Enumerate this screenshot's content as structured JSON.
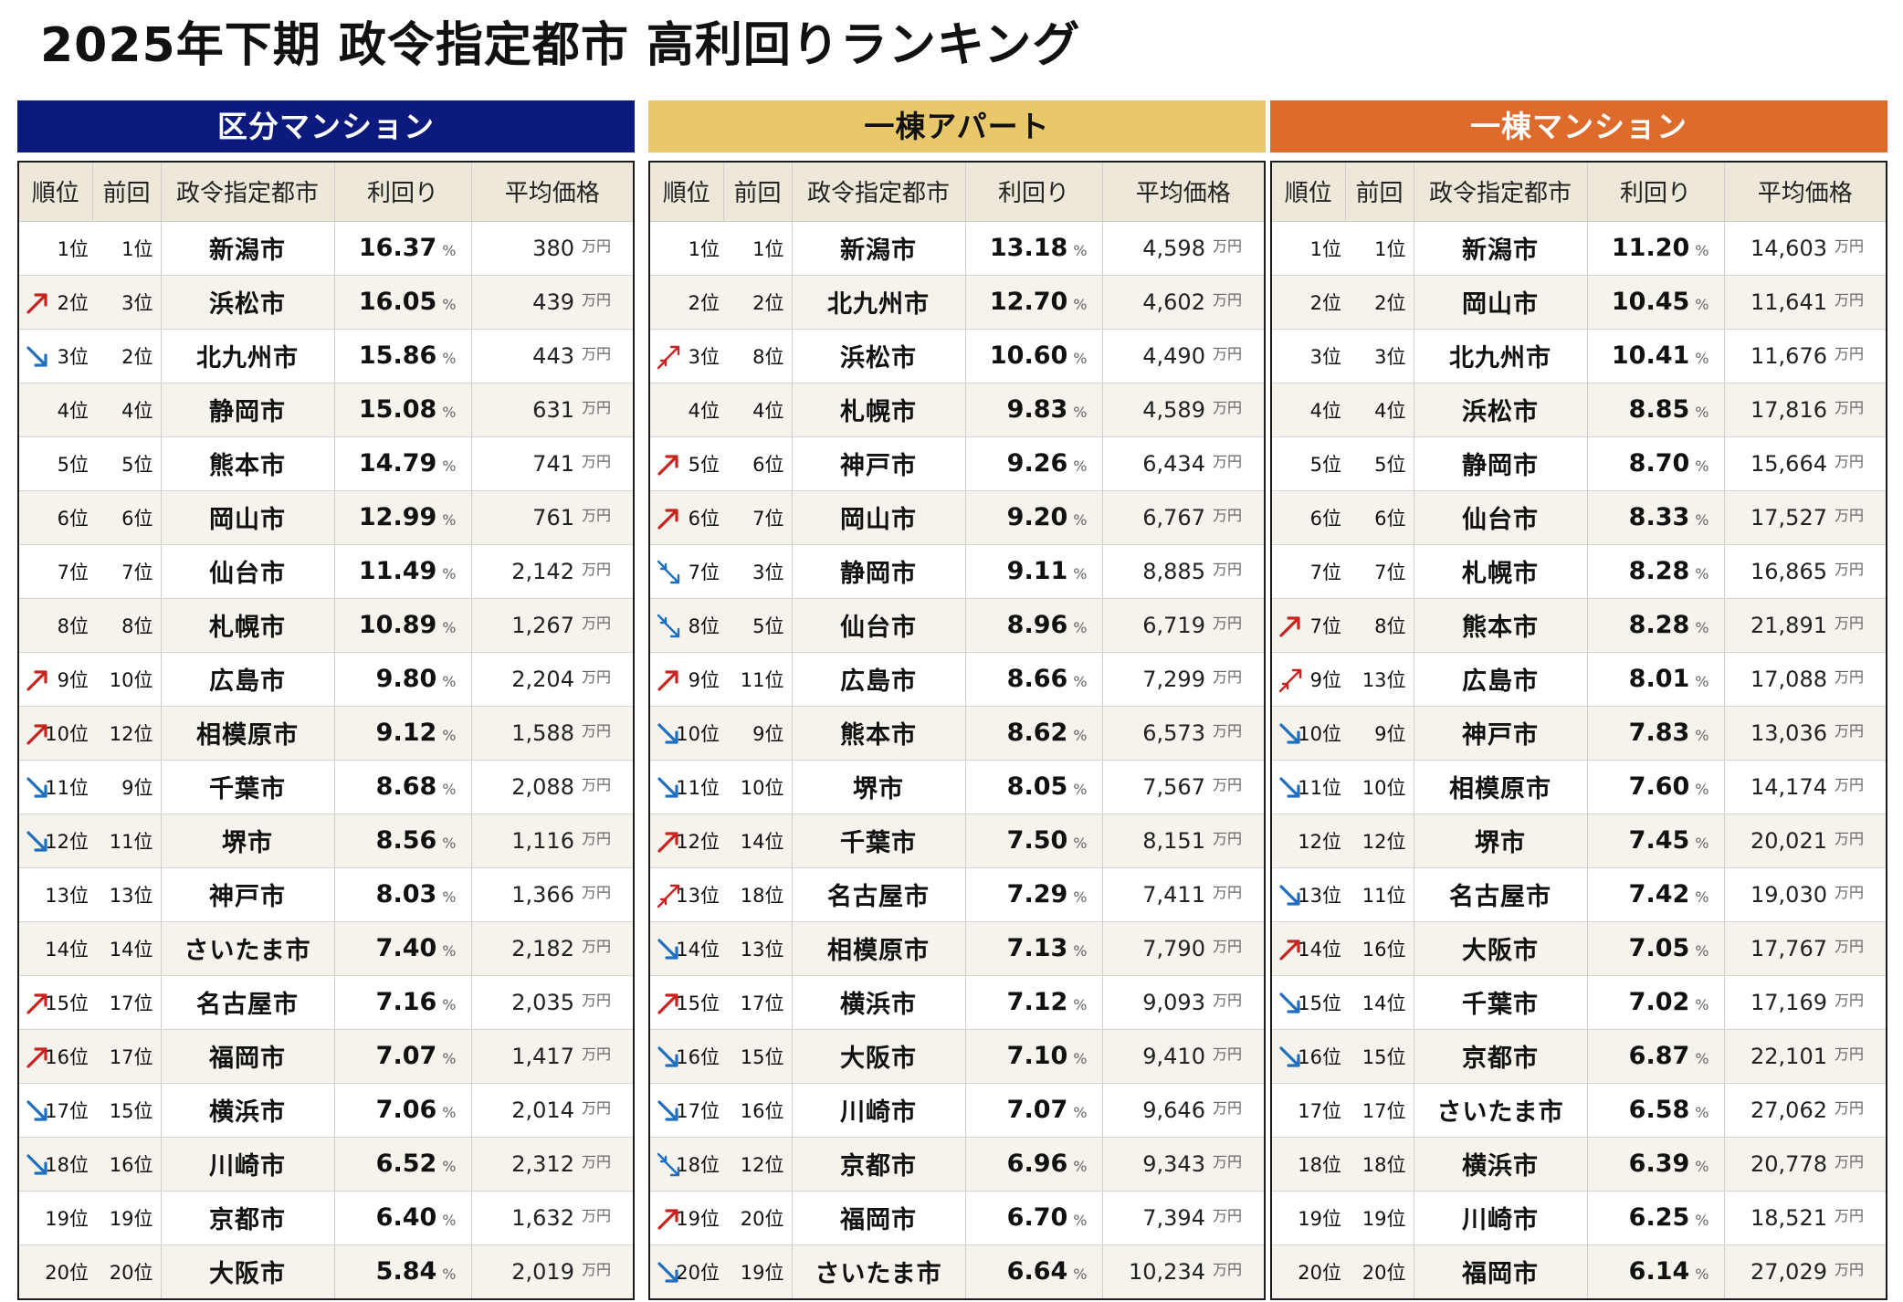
{
  "title": "2025年下期 政令指定都市 高利回りランキング",
  "colors": {
    "up": "#c8231f",
    "down": "#1e6fbf",
    "kubun": "#0c1a7e",
    "ittou_apart": "#e9c86b",
    "ittou_mansion": "#de6a2c"
  },
  "panels": [
    {
      "title": "区分マンション",
      "headers": {
        "rank": "順位",
        "prev": "前回",
        "city": "政令指定都市",
        "yield": "利回り",
        "price": "平均価格"
      },
      "rows": [
        {
          "trend": "none",
          "rank": "1位",
          "prev": "1位",
          "city": "新潟市",
          "yield": "16.37",
          "pct": "%",
          "price": "380",
          "unit": "万円"
        },
        {
          "trend": "up",
          "rank": "2位",
          "prev": "3位",
          "city": "浜松市",
          "yield": "16.05",
          "pct": "%",
          "price": "439",
          "unit": "万円"
        },
        {
          "trend": "down",
          "rank": "3位",
          "prev": "2位",
          "city": "北九州市",
          "yield": "15.86",
          "pct": "%",
          "price": "443",
          "unit": "万円"
        },
        {
          "trend": "none",
          "rank": "4位",
          "prev": "4位",
          "city": "静岡市",
          "yield": "15.08",
          "pct": "%",
          "price": "631",
          "unit": "万円"
        },
        {
          "trend": "none",
          "rank": "5位",
          "prev": "5位",
          "city": "熊本市",
          "yield": "14.79",
          "pct": "%",
          "price": "741",
          "unit": "万円"
        },
        {
          "trend": "none",
          "rank": "6位",
          "prev": "6位",
          "city": "岡山市",
          "yield": "12.99",
          "pct": "%",
          "price": "761",
          "unit": "万円"
        },
        {
          "trend": "none",
          "rank": "7位",
          "prev": "7位",
          "city": "仙台市",
          "yield": "11.49",
          "pct": "%",
          "price": "2,142",
          "unit": "万円"
        },
        {
          "trend": "none",
          "rank": "8位",
          "prev": "8位",
          "city": "札幌市",
          "yield": "10.89",
          "pct": "%",
          "price": "1,267",
          "unit": "万円"
        },
        {
          "trend": "up",
          "rank": "9位",
          "prev": "10位",
          "city": "広島市",
          "yield": "9.80",
          "pct": "%",
          "price": "2,204",
          "unit": "万円"
        },
        {
          "trend": "up",
          "rank": "10位",
          "prev": "12位",
          "city": "相模原市",
          "yield": "9.12",
          "pct": "%",
          "price": "1,588",
          "unit": "万円"
        },
        {
          "trend": "down",
          "rank": "11位",
          "prev": "9位",
          "city": "千葉市",
          "yield": "8.68",
          "pct": "%",
          "price": "2,088",
          "unit": "万円"
        },
        {
          "trend": "down",
          "rank": "12位",
          "prev": "11位",
          "city": "堺市",
          "yield": "8.56",
          "pct": "%",
          "price": "1,116",
          "unit": "万円"
        },
        {
          "trend": "none",
          "rank": "13位",
          "prev": "13位",
          "city": "神戸市",
          "yield": "8.03",
          "pct": "%",
          "price": "1,366",
          "unit": "万円"
        },
        {
          "trend": "none",
          "rank": "14位",
          "prev": "14位",
          "city": "さいたま市",
          "yield": "7.40",
          "pct": "%",
          "price": "2,182",
          "unit": "万円"
        },
        {
          "trend": "up",
          "rank": "15位",
          "prev": "17位",
          "city": "名古屋市",
          "yield": "7.16",
          "pct": "%",
          "price": "2,035",
          "unit": "万円"
        },
        {
          "trend": "up",
          "rank": "16位",
          "prev": "17位",
          "city": "福岡市",
          "yield": "7.07",
          "pct": "%",
          "price": "1,417",
          "unit": "万円"
        },
        {
          "trend": "down",
          "rank": "17位",
          "prev": "15位",
          "city": "横浜市",
          "yield": "7.06",
          "pct": "%",
          "price": "2,014",
          "unit": "万円"
        },
        {
          "trend": "down",
          "rank": "18位",
          "prev": "16位",
          "city": "川崎市",
          "yield": "6.52",
          "pct": "%",
          "price": "2,312",
          "unit": "万円"
        },
        {
          "trend": "none",
          "rank": "19位",
          "prev": "19位",
          "city": "京都市",
          "yield": "6.40",
          "pct": "%",
          "price": "1,632",
          "unit": "万円"
        },
        {
          "trend": "none",
          "rank": "20位",
          "prev": "20位",
          "city": "大阪市",
          "yield": "5.84",
          "pct": "%",
          "price": "2,019",
          "unit": "万円"
        }
      ]
    },
    {
      "title": "一棟アパート",
      "headers": {
        "rank": "順位",
        "prev": "前回",
        "city": "政令指定都市",
        "yield": "利回り",
        "price": "平均価格"
      },
      "rows": [
        {
          "trend": "none",
          "rank": "1位",
          "prev": "1位",
          "city": "新潟市",
          "yield": "13.18",
          "pct": "%",
          "price": "4,598",
          "unit": "万円"
        },
        {
          "trend": "none",
          "rank": "2位",
          "prev": "2位",
          "city": "北九州市",
          "yield": "12.70",
          "pct": "%",
          "price": "4,602",
          "unit": "万円"
        },
        {
          "trend": "upup",
          "rank": "3位",
          "prev": "8位",
          "city": "浜松市",
          "yield": "10.60",
          "pct": "%",
          "price": "4,490",
          "unit": "万円"
        },
        {
          "trend": "none",
          "rank": "4位",
          "prev": "4位",
          "city": "札幌市",
          "yield": "9.83",
          "pct": "%",
          "price": "4,589",
          "unit": "万円"
        },
        {
          "trend": "up",
          "rank": "5位",
          "prev": "6位",
          "city": "神戸市",
          "yield": "9.26",
          "pct": "%",
          "price": "6,434",
          "unit": "万円"
        },
        {
          "trend": "up",
          "rank": "6位",
          "prev": "7位",
          "city": "岡山市",
          "yield": "9.20",
          "pct": "%",
          "price": "6,767",
          "unit": "万円"
        },
        {
          "trend": "downdown",
          "rank": "7位",
          "prev": "3位",
          "city": "静岡市",
          "yield": "9.11",
          "pct": "%",
          "price": "8,885",
          "unit": "万円"
        },
        {
          "trend": "downdown",
          "rank": "8位",
          "prev": "5位",
          "city": "仙台市",
          "yield": "8.96",
          "pct": "%",
          "price": "6,719",
          "unit": "万円"
        },
        {
          "trend": "up",
          "rank": "9位",
          "prev": "11位",
          "city": "広島市",
          "yield": "8.66",
          "pct": "%",
          "price": "7,299",
          "unit": "万円"
        },
        {
          "trend": "down",
          "rank": "10位",
          "prev": "9位",
          "city": "熊本市",
          "yield": "8.62",
          "pct": "%",
          "price": "6,573",
          "unit": "万円"
        },
        {
          "trend": "down",
          "rank": "11位",
          "prev": "10位",
          "city": "堺市",
          "yield": "8.05",
          "pct": "%",
          "price": "7,567",
          "unit": "万円"
        },
        {
          "trend": "up",
          "rank": "12位",
          "prev": "14位",
          "city": "千葉市",
          "yield": "7.50",
          "pct": "%",
          "price": "8,151",
          "unit": "万円"
        },
        {
          "trend": "upup",
          "rank": "13位",
          "prev": "18位",
          "city": "名古屋市",
          "yield": "7.29",
          "pct": "%",
          "price": "7,411",
          "unit": "万円"
        },
        {
          "trend": "down",
          "rank": "14位",
          "prev": "13位",
          "city": "相模原市",
          "yield": "7.13",
          "pct": "%",
          "price": "7,790",
          "unit": "万円"
        },
        {
          "trend": "up",
          "rank": "15位",
          "prev": "17位",
          "city": "横浜市",
          "yield": "7.12",
          "pct": "%",
          "price": "9,093",
          "unit": "万円"
        },
        {
          "trend": "down",
          "rank": "16位",
          "prev": "15位",
          "city": "大阪市",
          "yield": "7.10",
          "pct": "%",
          "price": "9,410",
          "unit": "万円"
        },
        {
          "trend": "down",
          "rank": "17位",
          "prev": "16位",
          "city": "川崎市",
          "yield": "7.07",
          "pct": "%",
          "price": "9,646",
          "unit": "万円"
        },
        {
          "trend": "downdown",
          "rank": "18位",
          "prev": "12位",
          "city": "京都市",
          "yield": "6.96",
          "pct": "%",
          "price": "9,343",
          "unit": "万円"
        },
        {
          "trend": "up",
          "rank": "19位",
          "prev": "20位",
          "city": "福岡市",
          "yield": "6.70",
          "pct": "%",
          "price": "7,394",
          "unit": "万円"
        },
        {
          "trend": "down",
          "rank": "20位",
          "prev": "19位",
          "city": "さいたま市",
          "yield": "6.64",
          "pct": "%",
          "price": "10,234",
          "unit": "万円"
        }
      ]
    },
    {
      "title": "一棟マンション",
      "headers": {
        "rank": "順位",
        "prev": "前回",
        "city": "政令指定都市",
        "yield": "利回り",
        "price": "平均価格"
      },
      "rows": [
        {
          "trend": "none",
          "rank": "1位",
          "prev": "1位",
          "city": "新潟市",
          "yield": "11.20",
          "pct": "%",
          "price": "14,603",
          "unit": "万円"
        },
        {
          "trend": "none",
          "rank": "2位",
          "prev": "2位",
          "city": "岡山市",
          "yield": "10.45",
          "pct": "%",
          "price": "11,641",
          "unit": "万円"
        },
        {
          "trend": "none",
          "rank": "3位",
          "prev": "3位",
          "city": "北九州市",
          "yield": "10.41",
          "pct": "%",
          "price": "11,676",
          "unit": "万円"
        },
        {
          "trend": "none",
          "rank": "4位",
          "prev": "4位",
          "city": "浜松市",
          "yield": "8.85",
          "pct": "%",
          "price": "17,816",
          "unit": "万円"
        },
        {
          "trend": "none",
          "rank": "5位",
          "prev": "5位",
          "city": "静岡市",
          "yield": "8.70",
          "pct": "%",
          "price": "15,664",
          "unit": "万円"
        },
        {
          "trend": "none",
          "rank": "6位",
          "prev": "6位",
          "city": "仙台市",
          "yield": "8.33",
          "pct": "%",
          "price": "17,527",
          "unit": "万円"
        },
        {
          "trend": "none",
          "rank": "7位",
          "prev": "7位",
          "city": "札幌市",
          "yield": "8.28",
          "pct": "%",
          "price": "16,865",
          "unit": "万円"
        },
        {
          "trend": "up",
          "rank": "7位",
          "prev": "8位",
          "city": "熊本市",
          "yield": "8.28",
          "pct": "%",
          "price": "21,891",
          "unit": "万円"
        },
        {
          "trend": "upup",
          "rank": "9位",
          "prev": "13位",
          "city": "広島市",
          "yield": "8.01",
          "pct": "%",
          "price": "17,088",
          "unit": "万円"
        },
        {
          "trend": "down",
          "rank": "10位",
          "prev": "9位",
          "city": "神戸市",
          "yield": "7.83",
          "pct": "%",
          "price": "13,036",
          "unit": "万円"
        },
        {
          "trend": "down",
          "rank": "11位",
          "prev": "10位",
          "city": "相模原市",
          "yield": "7.60",
          "pct": "%",
          "price": "14,174",
          "unit": "万円"
        },
        {
          "trend": "none",
          "rank": "12位",
          "prev": "12位",
          "city": "堺市",
          "yield": "7.45",
          "pct": "%",
          "price": "20,021",
          "unit": "万円"
        },
        {
          "trend": "down",
          "rank": "13位",
          "prev": "11位",
          "city": "名古屋市",
          "yield": "7.42",
          "pct": "%",
          "price": "19,030",
          "unit": "万円"
        },
        {
          "trend": "up",
          "rank": "14位",
          "prev": "16位",
          "city": "大阪市",
          "yield": "7.05",
          "pct": "%",
          "price": "17,767",
          "unit": "万円"
        },
        {
          "trend": "down",
          "rank": "15位",
          "prev": "14位",
          "city": "千葉市",
          "yield": "7.02",
          "pct": "%",
          "price": "17,169",
          "unit": "万円"
        },
        {
          "trend": "down",
          "rank": "16位",
          "prev": "15位",
          "city": "京都市",
          "yield": "6.87",
          "pct": "%",
          "price": "22,101",
          "unit": "万円"
        },
        {
          "trend": "none",
          "rank": "17位",
          "prev": "17位",
          "city": "さいたま市",
          "yield": "6.58",
          "pct": "%",
          "price": "27,062",
          "unit": "万円"
        },
        {
          "trend": "none",
          "rank": "18位",
          "prev": "18位",
          "city": "横浜市",
          "yield": "6.39",
          "pct": "%",
          "price": "20,778",
          "unit": "万円"
        },
        {
          "trend": "none",
          "rank": "19位",
          "prev": "19位",
          "city": "川崎市",
          "yield": "6.25",
          "pct": "%",
          "price": "18,521",
          "unit": "万円"
        },
        {
          "trend": "none",
          "rank": "20位",
          "prev": "20位",
          "city": "福岡市",
          "yield": "6.14",
          "pct": "%",
          "price": "27,029",
          "unit": "万円"
        }
      ]
    }
  ]
}
